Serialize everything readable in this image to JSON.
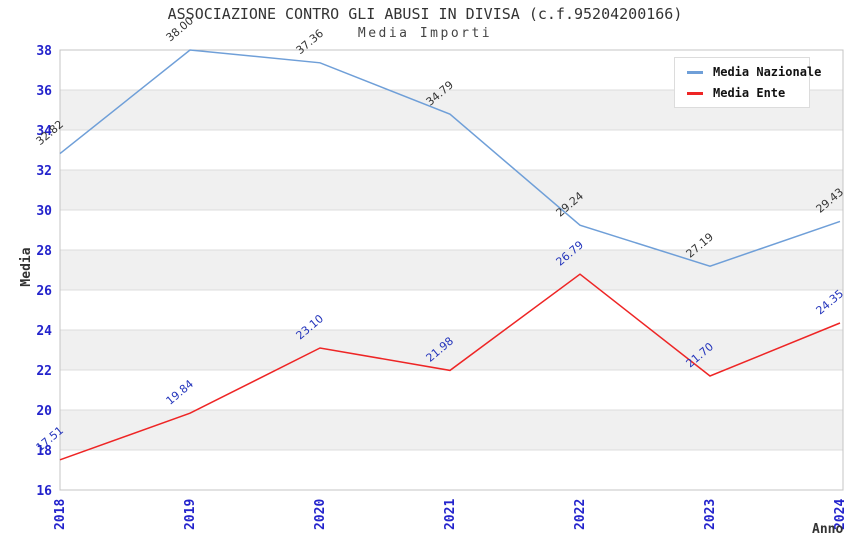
{
  "chart": {
    "title": "ASSOCIAZIONE CONTRO GLI ABUSI IN DIVISA (c.f.95204200166)",
    "subtitle": "Media Importi"
  },
  "chart_data": {
    "type": "line",
    "x": [
      "2018",
      "2019",
      "2020",
      "2021",
      "2022",
      "2023",
      "2024"
    ],
    "series": [
      {
        "name": "Media Nazionale",
        "color": "#6f9fd8",
        "label_color": "#333333",
        "values": [
          32.82,
          38.0,
          37.36,
          34.79,
          29.24,
          27.19,
          29.43
        ]
      },
      {
        "name": "Media Ente",
        "color": "#ee2525",
        "label_color": "#2233bb",
        "values": [
          17.51,
          19.84,
          23.1,
          21.98,
          26.79,
          21.7,
          24.35
        ]
      }
    ],
    "xlabel": "Anno",
    "ylabel": "Media",
    "ylim": [
      16,
      38
    ],
    "ytick_step": 2,
    "grid": "horizontal-bands",
    "legend_position": "top-right",
    "band_colors": [
      "#ffffff",
      "#f0f0f0"
    ],
    "gridline_color": "#dcdcdc",
    "border_color": "#c4c4c4",
    "axis_tick_color": "#2323cc"
  }
}
